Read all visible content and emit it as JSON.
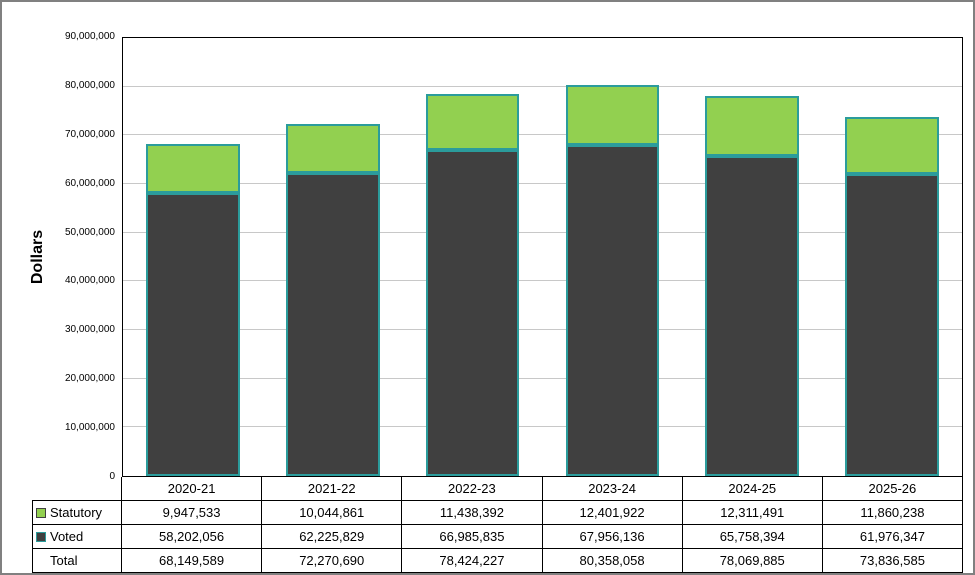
{
  "chart_data": {
    "type": "bar",
    "stacked": true,
    "title": "",
    "xlabel": "",
    "ylabel": "Dollars",
    "ylim": [
      0,
      90000000
    ],
    "ytick_labels": [
      "0",
      "10,000,000",
      "20,000,000",
      "30,000,000",
      "40,000,000",
      "50,000,000",
      "60,000,000",
      "70,000,000",
      "80,000,000",
      "90,000,000"
    ],
    "categories": [
      "2020-21",
      "2021-22",
      "2022-23",
      "2023-24",
      "2024-25",
      "2025-26"
    ],
    "series": [
      {
        "name": "Voted",
        "color": "#404040",
        "border_color": "#2B9C9C",
        "values": [
          58202056,
          62225829,
          66985835,
          67956136,
          65758394,
          61976347
        ]
      },
      {
        "name": "Statutory",
        "color": "#92D050",
        "border_color": "#2B9C9C",
        "values": [
          9947533,
          10044861,
          11438392,
          12401922,
          12311491,
          11860238
        ]
      }
    ],
    "grid": true,
    "legend_position": "data-table-left"
  },
  "table": {
    "rows": [
      {
        "label": "Statutory",
        "swatch_fill": "#92D050",
        "swatch_border": "#404040",
        "values": [
          "9,947,533",
          "10,044,861",
          "11,438,392",
          "12,401,922",
          "12,311,491",
          "11,860,238"
        ]
      },
      {
        "label": "Voted",
        "swatch_fill": "#404040",
        "swatch_border": "#2B9C9C",
        "values": [
          "58,202,056",
          "62,225,829",
          "66,985,835",
          "67,956,136",
          "65,758,394",
          "61,976,347"
        ]
      },
      {
        "label": "Total",
        "swatch_fill": null,
        "swatch_border": null,
        "values": [
          "68,149,589",
          "72,270,690",
          "78,424,227",
          "80,358,058",
          "78,069,885",
          "73,836,585"
        ]
      }
    ]
  },
  "colors": {
    "voted_fill": "#404040",
    "statutory_fill": "#92D050",
    "bar_outline": "#2B9C9C",
    "gridline": "#c8c8c8",
    "frame_border": "#808080",
    "axis_border": "#000000"
  }
}
